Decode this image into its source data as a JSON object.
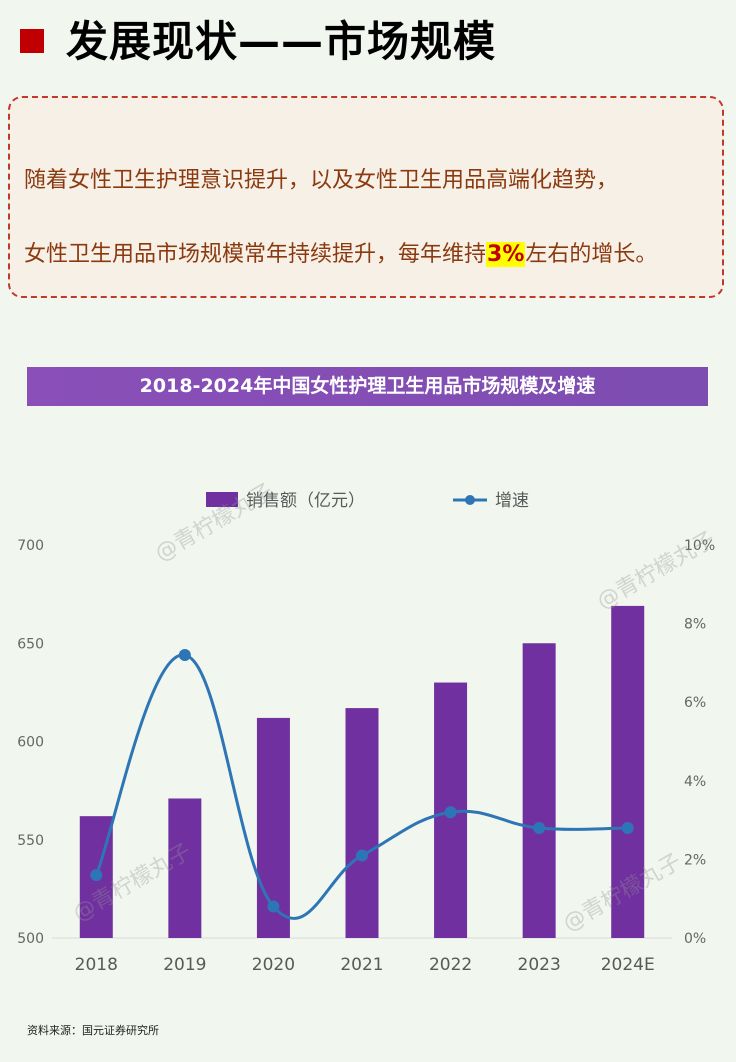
{
  "header": {
    "title": "发展现状——市场规模"
  },
  "callout": {
    "line1": "随着女性卫生护理意识提升，以及女性卫生用品高端化趋势，",
    "line2_before": "女性卫生用品市场规模常年持续提升，每年维持",
    "line2_highlight": "3%",
    "line2_after": "左右的增长。"
  },
  "watermark": "@青柠檬丸子",
  "source": "资料来源：国元证券研究所",
  "colors": {
    "bar": "#7030a0",
    "line": "#2e75b6",
    "banner": "#8553b5",
    "accent": "#c00000"
  },
  "chart_data": {
    "type": "bar",
    "title": "2018-2024年中国女性护理卫生用品市场规模及增速",
    "categories": [
      "2018",
      "2019",
      "2020",
      "2021",
      "2022",
      "2023",
      "2024E"
    ],
    "series": [
      {
        "name": "销售额（亿元）",
        "type": "bar",
        "axis": "left",
        "values": [
          562,
          571,
          612,
          617,
          630,
          650,
          669
        ]
      },
      {
        "name": "增速",
        "type": "line",
        "axis": "right",
        "values": [
          1.6,
          7.2,
          0.8,
          2.1,
          3.2,
          2.8,
          2.8
        ]
      }
    ],
    "y_left": {
      "min": 500,
      "max": 700,
      "ticks": [
        "500",
        "550",
        "600",
        "650",
        "700"
      ]
    },
    "y_right": {
      "min": 0,
      "max": 10,
      "ticks": [
        "0%",
        "2%",
        "4%",
        "6%",
        "8%",
        "10%"
      ]
    },
    "legend_position": "top",
    "grid": false
  }
}
